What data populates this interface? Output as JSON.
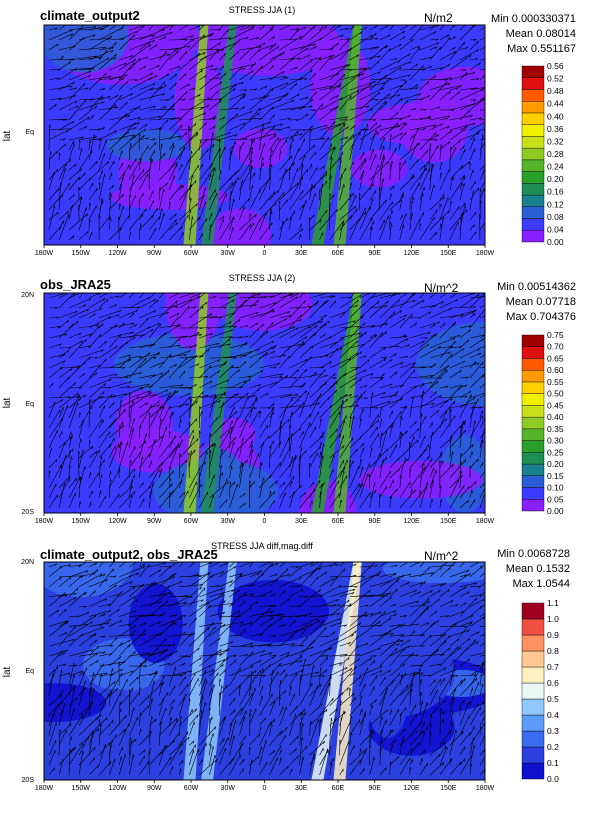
{
  "panels": [
    {
      "title_left": "climate_output2",
      "title_center": "STRESS JJA (1)",
      "units": "N/m2",
      "stats": {
        "min": "Min 0.000330371",
        "mean": "Mean 0.08014",
        "max": "Max 0.551167"
      },
      "ylabel": "lat",
      "yticks": [
        "Eq"
      ],
      "xticks": [
        "180W",
        "150W",
        "120W",
        "90W",
        "60W",
        "30W",
        "0",
        "30E",
        "60E",
        "90E",
        "120E",
        "150E",
        "180W"
      ],
      "colorbar": {
        "levels": [
          "0.00",
          "0.04",
          "0.08",
          "0.12",
          "0.16",
          "0.20",
          "0.24",
          "0.28",
          "0.32",
          "0.36",
          "0.40",
          "0.44",
          "0.48",
          "0.52",
          "0.56"
        ],
        "colors": [
          "#8a1fff",
          "#3b3bff",
          "#2a5fd6",
          "#1a7f8f",
          "#1e8f55",
          "#2aa02a",
          "#55b52a",
          "#8fcc22",
          "#c8e01a",
          "#f0f000",
          "#ffd000",
          "#ff9a00",
          "#ff5a00",
          "#e01010",
          "#a00000"
        ]
      }
    },
    {
      "title_left": "obs_JRA25",
      "title_center": "STRESS JJA (2)",
      "units": "N/m^2",
      "stats": {
        "min": "Min 0.00514362",
        "mean": "Mean 0.07718",
        "max": "Max 0.704376"
      },
      "ylabel": "lat",
      "yticks": [
        "20N",
        "Eq",
        "20S"
      ],
      "xticks": [
        "180W",
        "150W",
        "120W",
        "90W",
        "60W",
        "30W",
        "0",
        "30E",
        "60E",
        "90E",
        "120E",
        "150E",
        "180W"
      ],
      "colorbar": {
        "levels": [
          "0.00",
          "0.05",
          "0.10",
          "0.15",
          "0.20",
          "0.25",
          "0.30",
          "0.35",
          "0.40",
          "0.45",
          "0.50",
          "0.55",
          "0.60",
          "0.65",
          "0.70",
          "0.75"
        ],
        "colors": [
          "#8a1fff",
          "#3b3bff",
          "#2a5fd6",
          "#1a7f8f",
          "#1e8f55",
          "#2aa02a",
          "#55b52a",
          "#8fcc22",
          "#c8e01a",
          "#f0f000",
          "#ffd000",
          "#ff9a00",
          "#ff5a00",
          "#e01010",
          "#a00000"
        ]
      }
    },
    {
      "title_left": "climate_output2, obs_JRA25",
      "title_center": "STRESS JJA diff,mag.diff",
      "units": "N/m^2",
      "stats": {
        "min": "Min 0.0068728",
        "mean": "Mean 0.1532",
        "max": "Max 1.0544"
      },
      "ylabel": "lat",
      "yticks": [
        "20N",
        "Eq",
        "20S"
      ],
      "xticks": [
        "180W",
        "150W",
        "120W",
        "90W",
        "60W",
        "30W",
        "0",
        "30E",
        "60E",
        "90E",
        "120E",
        "150E",
        "180W"
      ],
      "colorbar": {
        "levels": [
          "0.0",
          "0.1",
          "0.2",
          "0.3",
          "0.4",
          "0.5",
          "0.6",
          "0.7",
          "0.8",
          "0.9",
          "1.0",
          "1.1"
        ],
        "colors": [
          "#1010d0",
          "#2a40e0",
          "#3a6cf0",
          "#5c9cf8",
          "#8ec8fc",
          "#e8f8f4",
          "#fff0c0",
          "#ffc890",
          "#ff9060",
          "#f05040",
          "#a00020"
        ]
      }
    }
  ],
  "chart_data": [
    {
      "type": "heatmap",
      "title": "STRESS JJA (1)",
      "subtitle": "climate_output2",
      "units": "N/m2",
      "ylabel": "lat",
      "x_range": [
        "180W",
        "180W"
      ],
      "y_range": [
        "20S",
        "20N"
      ],
      "min": 0.000330371,
      "mean": 0.08014,
      "max": 0.551167,
      "colorbar_range": [
        0.0,
        0.56
      ]
    },
    {
      "type": "heatmap",
      "title": "STRESS JJA (2)",
      "subtitle": "obs_JRA25",
      "units": "N/m^2",
      "ylabel": "lat",
      "x_range": [
        "180W",
        "180W"
      ],
      "y_range": [
        "20S",
        "20N"
      ],
      "min": 0.00514362,
      "mean": 0.07718,
      "max": 0.704376,
      "colorbar_range": [
        0.0,
        0.75
      ]
    },
    {
      "type": "heatmap",
      "title": "STRESS JJA diff,mag.diff",
      "subtitle": "climate_output2, obs_JRA25",
      "units": "N/m^2",
      "ylabel": "lat",
      "x_range": [
        "180W",
        "180W"
      ],
      "y_range": [
        "20S",
        "20N"
      ],
      "min": 0.0068728,
      "mean": 0.1532,
      "max": 1.0544,
      "colorbar_range": [
        0.0,
        1.1
      ]
    }
  ]
}
